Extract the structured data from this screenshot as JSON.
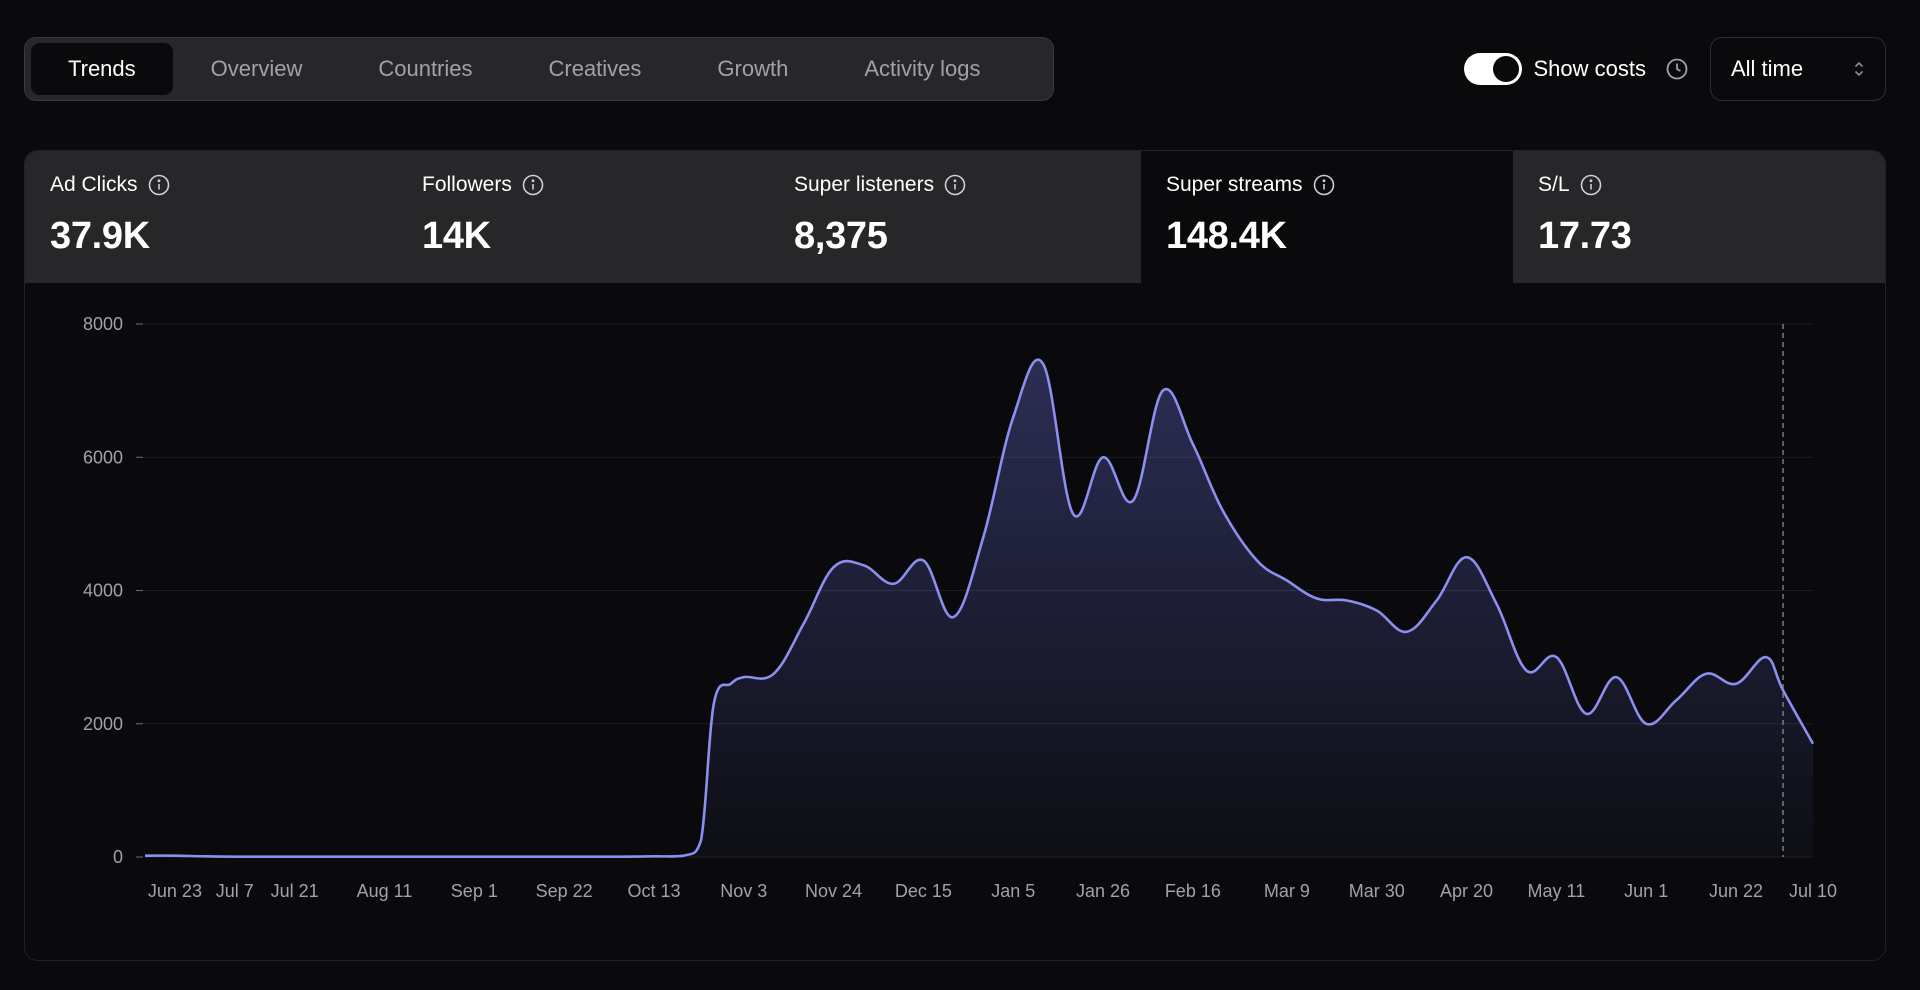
{
  "tabs": [
    {
      "label": "Trends",
      "active": true
    },
    {
      "label": "Overview",
      "active": false
    },
    {
      "label": "Countries",
      "active": false
    },
    {
      "label": "Creatives",
      "active": false
    },
    {
      "label": "Growth",
      "active": false
    },
    {
      "label": "Activity logs",
      "active": false
    }
  ],
  "controls": {
    "show_costs_label": "Show costs",
    "show_costs_on": true,
    "range_value": "All time",
    "clock_icon": "clock-icon",
    "chevron_icon": "chevron-up-down-icon"
  },
  "metrics": [
    {
      "label": "Ad Clicks",
      "value": "37.9K",
      "active": false
    },
    {
      "label": "Followers",
      "value": "14K",
      "active": false
    },
    {
      "label": "Super listeners",
      "value": "8,375",
      "active": false
    },
    {
      "label": "Super streams",
      "value": "148.4K",
      "active": true
    },
    {
      "label": "S/L",
      "value": "17.73",
      "active": false
    }
  ],
  "colors": {
    "accent": "#8b8ff0",
    "tab_bg": "#27272a",
    "page_bg": "#0a0a0c"
  },
  "chart_data": {
    "type": "area",
    "grid": true,
    "ylim": [
      0,
      8000
    ],
    "yticks": [
      0,
      2000,
      4000,
      6000,
      8000
    ],
    "xticks": [
      "Jun 23",
      "Jul 7",
      "Jul 21",
      "Aug 11",
      "Sep 1",
      "Sep 22",
      "Oct 13",
      "Nov 3",
      "Nov 24",
      "Dec 15",
      "Jan 5",
      "Jan 26",
      "Feb 16",
      "Mar 9",
      "Mar 30",
      "Apr 20",
      "May 11",
      "Jun 1",
      "Jun 22",
      "Jul 10"
    ],
    "marker_at": "Jul 3",
    "series": [
      {
        "x": [
          "Jun 16",
          "Jun 23",
          "Jun 30",
          "Jul 7",
          "Jul 14",
          "Jul 21",
          "Jul 28",
          "Aug 4",
          "Aug 11",
          "Aug 18",
          "Aug 25",
          "Sep 1",
          "Sep 8",
          "Sep 15",
          "Sep 22",
          "Sep 29",
          "Oct 6",
          "Oct 13",
          "Oct 20",
          "Oct 24",
          "Oct 27",
          "Oct 31",
          "Nov 3",
          "Nov 10",
          "Nov 17",
          "Nov 24",
          "Dec 1",
          "Dec 8",
          "Dec 15",
          "Dec 22",
          "Dec 29",
          "Jan 5",
          "Jan 12",
          "Jan 19",
          "Jan 26",
          "Feb 2",
          "Feb 9",
          "Feb 16",
          "Feb 23",
          "Mar 2",
          "Mar 9",
          "Mar 16",
          "Mar 23",
          "Mar 30",
          "Apr 6",
          "Apr 13",
          "Apr 20",
          "Apr 27",
          "May 4",
          "May 11",
          "May 18",
          "May 25",
          "Jun 1",
          "Jun 8",
          "Jun 15",
          "Jun 22",
          "Jun 29",
          "Jul 3",
          "Jul 10"
        ],
        "values": [
          20,
          20,
          10,
          5,
          5,
          5,
          5,
          5,
          5,
          5,
          5,
          5,
          5,
          5,
          5,
          5,
          5,
          10,
          20,
          250,
          2300,
          2600,
          2700,
          2750,
          3500,
          4350,
          4380,
          4100,
          4450,
          3600,
          4800,
          6600,
          7400,
          5150,
          6000,
          5350,
          7000,
          6200,
          5200,
          4450,
          4150,
          3880,
          3850,
          3700,
          3380,
          3850,
          4500,
          3800,
          2800,
          3000,
          2150,
          2700,
          2000,
          2350,
          2750,
          2600,
          3000,
          2500,
          1700
        ]
      }
    ]
  }
}
